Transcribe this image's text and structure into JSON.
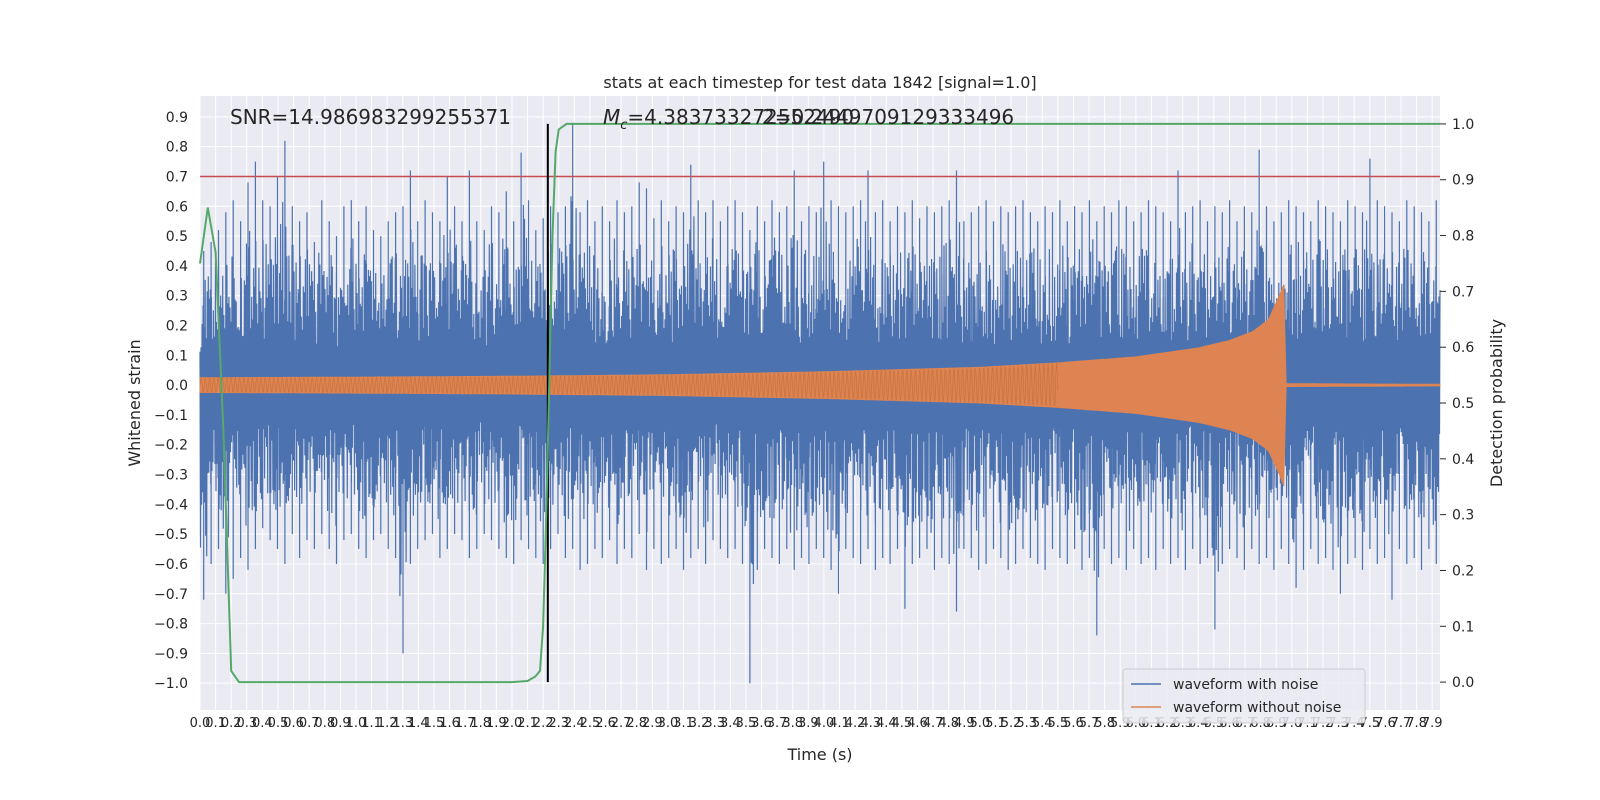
{
  "chart_data": {
    "type": "line",
    "title": "stats at each timestep for test data 1842 [signal=1.0]",
    "xlabel": "Time (s)",
    "ylabel": "Whitened strain",
    "y2label": "Detection probability",
    "xlim": [
      0.0,
      7.95
    ],
    "ylim": [
      -1.09,
      0.97
    ],
    "y2lim": [
      -0.05,
      1.05
    ],
    "x_tick_step": 0.1,
    "x_tick_labels": [
      "0.0",
      "0.1",
      "0.2",
      "0.3",
      "0.4",
      "0.5",
      "0.6",
      "0.7",
      "0.8",
      "0.9",
      "1.0",
      "1.1",
      "1.2",
      "1.3",
      "1.4",
      "1.5",
      "1.6",
      "1.7",
      "1.8",
      "1.9",
      "2.0",
      "2.1",
      "2.2",
      "2.3",
      "2.4",
      "2.5",
      "2.6",
      "2.7",
      "2.8",
      "2.9",
      "3.0",
      "3.1",
      "3.2",
      "3.3",
      "3.4",
      "3.5",
      "3.6",
      "3.7",
      "3.8",
      "3.9",
      "4.0",
      "4.1",
      "4.2",
      "4.3",
      "4.4",
      "4.5",
      "4.6",
      "4.7",
      "4.8",
      "4.9",
      "5.0",
      "5.1",
      "5.2",
      "5.3",
      "5.4",
      "5.5",
      "5.6",
      "5.7",
      "5.8",
      "5.9",
      "6.0",
      "6.1",
      "6.2",
      "6.3",
      "6.4",
      "6.5",
      "6.6",
      "6.7",
      "6.8",
      "6.9",
      "7.0",
      "7.1",
      "7.2",
      "7.3",
      "7.4",
      "7.5",
      "7.6",
      "7.7",
      "7.8",
      "7.9"
    ],
    "y_ticks": [
      -1.0,
      -0.9,
      -0.8,
      -0.7,
      -0.6,
      -0.5,
      -0.4,
      -0.3,
      -0.2,
      -0.1,
      0.0,
      0.1,
      0.2,
      0.3,
      0.4,
      0.5,
      0.6,
      0.7,
      0.8,
      0.9
    ],
    "y_tick_labels": [
      "−1.0",
      "−0.9",
      "−0.8",
      "−0.7",
      "−0.6",
      "−0.5",
      "−0.4",
      "−0.3",
      "−0.2",
      "−0.1",
      "0.0",
      "0.1",
      "0.2",
      "0.3",
      "0.4",
      "0.5",
      "0.6",
      "0.7",
      "0.8",
      "0.9"
    ],
    "y2_ticks": [
      0.0,
      0.1,
      0.2,
      0.3,
      0.4,
      0.5,
      0.6,
      0.7,
      0.8,
      0.9,
      1.0
    ],
    "y2_tick_labels": [
      "0.0",
      "0.1",
      "0.2",
      "0.3",
      "0.4",
      "0.5",
      "0.6",
      "0.7",
      "0.8",
      "0.9",
      "1.0"
    ],
    "threshold": {
      "value": 0.7,
      "color": "#c44e52"
    },
    "event_time": 2.23,
    "merger_time": 6.95,
    "annotations": {
      "snr": "SNR=14.986983299255371",
      "mc_symbol": "M",
      "mc_sub": "c",
      "mc_value": "=4.383733272552490",
      "q_value": "2=0.2449709129333496"
    },
    "series": [
      {
        "name": "waveform with noise",
        "color": "#4c72b0",
        "envelope_top": [
          0.45,
          0.48,
          0.52,
          0.58,
          0.62,
          0.55,
          0.68,
          0.75,
          0.62,
          0.6,
          0.7,
          0.82,
          0.6,
          0.55,
          0.58,
          0.48,
          0.62,
          0.55,
          0.5,
          0.6,
          0.62,
          0.55,
          0.6,
          0.52,
          0.5,
          0.55,
          0.58,
          0.6,
          0.72,
          0.55,
          0.62,
          0.58,
          0.55,
          0.7,
          0.6,
          0.55,
          0.72,
          0.55,
          0.52,
          0.6,
          0.58,
          0.65,
          0.55,
          0.78,
          0.62,
          0.52,
          0.56,
          0.6,
          0.58,
          0.6,
          0.88,
          0.58,
          0.62,
          0.55,
          0.6,
          0.55,
          0.62,
          0.58,
          0.6,
          0.68,
          0.66,
          0.56,
          0.62,
          0.55,
          0.6,
          0.58,
          0.74,
          0.62,
          0.58,
          0.62,
          0.55,
          0.6,
          0.62,
          0.58,
          0.52,
          0.6,
          0.55,
          0.62,
          0.58,
          0.6,
          0.72,
          0.55,
          0.6,
          0.58,
          0.75,
          0.62,
          0.6,
          0.58,
          0.6,
          0.62,
          0.72,
          0.58,
          0.62,
          0.55,
          0.6,
          0.58,
          0.62,
          0.56,
          0.6,
          0.58,
          0.6,
          0.62,
          0.72,
          0.55,
          0.58,
          0.6,
          0.62,
          0.55,
          0.6,
          0.58,
          0.6,
          0.62,
          0.58,
          0.55,
          0.6,
          0.58,
          0.62,
          0.55,
          0.6,
          0.58,
          0.62,
          0.55,
          0.6,
          0.58,
          0.62,
          0.6,
          0.55,
          0.58,
          0.62,
          0.6,
          0.58,
          0.55,
          0.72,
          0.58,
          0.6,
          0.62,
          0.55,
          0.6,
          0.58,
          0.62,
          0.55,
          0.6,
          0.58,
          0.79,
          0.6,
          0.55,
          0.58,
          0.62,
          0.6,
          0.58,
          0.55,
          0.62,
          0.6,
          0.58,
          0.55,
          0.62,
          0.6,
          0.58,
          0.76,
          0.62,
          0.6,
          0.58,
          0.55,
          0.62,
          0.6,
          0.58,
          0.55,
          0.62
        ],
        "envelope_bottom": [
          -0.72,
          -0.6,
          -0.55,
          -0.7,
          -0.65,
          -0.58,
          -0.62,
          -0.55,
          -0.48,
          -0.52,
          -0.55,
          -0.6,
          -0.5,
          -0.58,
          -0.52,
          -0.55,
          -0.5,
          -0.55,
          -0.6,
          -0.52,
          -0.5,
          -0.55,
          -0.58,
          -0.52,
          -0.5,
          -0.55,
          -0.58,
          -0.9,
          -0.6,
          -0.55,
          -0.52,
          -0.5,
          -0.58,
          -0.55,
          -0.5,
          -0.52,
          -0.58,
          -0.55,
          -0.5,
          -0.52,
          -0.55,
          -0.58,
          -0.6,
          -0.52,
          -0.55,
          -0.58,
          -0.6,
          -0.55,
          -0.5,
          -0.58,
          -0.55,
          -0.62,
          -0.6,
          -0.55,
          -0.58,
          -0.52,
          -0.6,
          -0.55,
          -0.58,
          -0.5,
          -0.62,
          -0.55,
          -0.6,
          -0.58,
          -0.55,
          -0.62,
          -0.58,
          -0.55,
          -0.6,
          -0.52,
          -0.55,
          -0.58,
          -0.55,
          -0.6,
          -1.0,
          -0.62,
          -0.55,
          -0.58,
          -0.6,
          -0.55,
          -0.62,
          -0.58,
          -0.6,
          -0.55,
          -0.58,
          -0.62,
          -0.7,
          -0.55,
          -0.58,
          -0.6,
          -0.55,
          -0.62,
          -0.58,
          -0.6,
          -0.55,
          -0.75,
          -0.6,
          -0.58,
          -0.55,
          -0.62,
          -0.58,
          -0.6,
          -0.76,
          -0.55,
          -0.58,
          -0.62,
          -0.6,
          -0.55,
          -0.58,
          -0.62,
          -0.6,
          -0.55,
          -0.58,
          -0.6,
          -0.62,
          -0.55,
          -0.58,
          -0.6,
          -0.55,
          -0.62,
          -0.58,
          -0.84,
          -0.55,
          -0.6,
          -0.58,
          -0.62,
          -0.55,
          -0.6,
          -0.58,
          -0.62,
          -0.55,
          -0.6,
          -0.58,
          -0.62,
          -0.55,
          -0.6,
          -0.58,
          -0.82,
          -0.6,
          -0.55,
          -0.58,
          -0.62,
          -0.55,
          -0.6,
          -0.58,
          -0.62,
          -0.55,
          -0.6,
          -0.68,
          -0.62,
          -0.55,
          -0.6,
          -0.58,
          -0.62,
          -0.7,
          -0.6,
          -0.58,
          -0.62,
          -0.55,
          -0.6,
          -0.58,
          -0.72,
          -0.55,
          -0.6,
          -0.58,
          -0.62,
          -0.55,
          -0.6
        ]
      },
      {
        "name": "waveform without noise",
        "color": "#dd8452",
        "amplitude_points": [
          [
            0.0,
            0.025
          ],
          [
            1.0,
            0.027
          ],
          [
            2.0,
            0.03
          ],
          [
            3.0,
            0.035
          ],
          [
            4.0,
            0.045
          ],
          [
            5.0,
            0.06
          ],
          [
            5.5,
            0.075
          ],
          [
            6.0,
            0.095
          ],
          [
            6.4,
            0.125
          ],
          [
            6.6,
            0.15
          ],
          [
            6.75,
            0.18
          ],
          [
            6.85,
            0.22
          ],
          [
            6.92,
            0.3
          ],
          [
            6.95,
            0.34
          ],
          [
            6.96,
            0.005
          ],
          [
            7.95,
            0.003
          ]
        ]
      },
      {
        "name": "detection probability",
        "color": "#55a868",
        "axis": "y2",
        "x": [
          0.0,
          0.05,
          0.1,
          0.15,
          0.2,
          0.25,
          0.3,
          0.35,
          0.4,
          0.5,
          0.6,
          0.8,
          1.0,
          1.2,
          1.4,
          1.6,
          1.8,
          2.0,
          2.1,
          2.15,
          2.18,
          2.2,
          2.22,
          2.24,
          2.26,
          2.28,
          2.3,
          2.35,
          2.4,
          2.6,
          3.0,
          4.0,
          5.0,
          6.0,
          7.0,
          7.95
        ],
        "y": [
          0.75,
          0.85,
          0.77,
          0.45,
          0.02,
          0.0,
          0.0,
          0.0,
          0.0,
          0.0,
          0.0,
          0.0,
          0.0,
          0.0,
          0.0,
          0.0,
          0.0,
          0.0,
          0.002,
          0.01,
          0.02,
          0.1,
          0.3,
          0.55,
          0.8,
          0.95,
          0.99,
          1.0,
          1.0,
          1.0,
          1.0,
          1.0,
          1.0,
          1.0,
          1.0,
          1.0
        ]
      }
    ],
    "legend": [
      "waveform with noise",
      "waveform without noise"
    ],
    "legend_position": "lower-right",
    "grid": true
  }
}
